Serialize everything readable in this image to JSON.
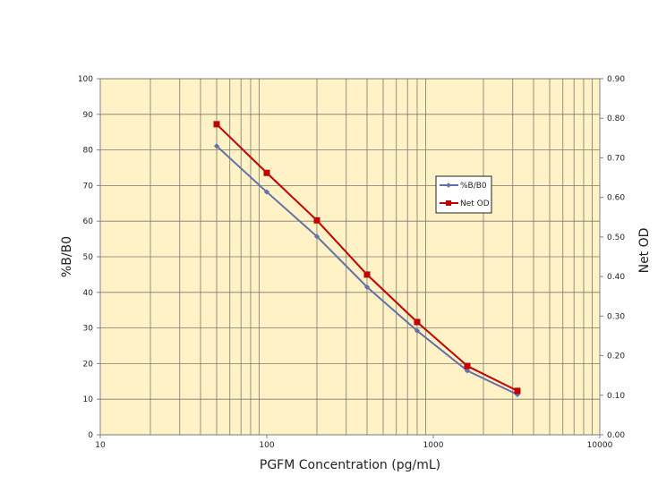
{
  "chart_data": {
    "type": "line",
    "title": "",
    "xlabel": "PGFM Concentration (pg/mL)",
    "ylabel": "%B/B0",
    "y2label": "Net OD",
    "x_scale": "log",
    "xlim": [
      10,
      10000
    ],
    "ylim": [
      0,
      100
    ],
    "y2lim": [
      0,
      0.9
    ],
    "grid": true,
    "plot_background": "#FFF2C6",
    "x_ticks": [
      "10",
      "100",
      "1000",
      "10000"
    ],
    "y_ticks": [
      "0",
      "10",
      "20",
      "30",
      "40",
      "50",
      "60",
      "70",
      "80",
      "90",
      "100"
    ],
    "y2_ticks": [
      "0.00",
      "0.10",
      "0.20",
      "0.30",
      "0.40",
      "0.50",
      "0.60",
      "0.70",
      "0.80",
      "0.90"
    ],
    "legend_position": "right-center",
    "x": [
      50,
      100,
      200,
      400,
      800,
      1600,
      3200
    ],
    "series": [
      {
        "name": "%B/B0",
        "axis": "left",
        "color": "#6670A8",
        "marker": "diamond",
        "values": [
          81.1,
          68.2,
          55.7,
          41.5,
          29.2,
          18.0,
          11.3
        ]
      },
      {
        "name": "Net OD",
        "axis": "right",
        "color": "#C00000",
        "marker": "square",
        "values": [
          0.785,
          0.662,
          0.542,
          0.405,
          0.285,
          0.174,
          0.111
        ]
      }
    ]
  }
}
